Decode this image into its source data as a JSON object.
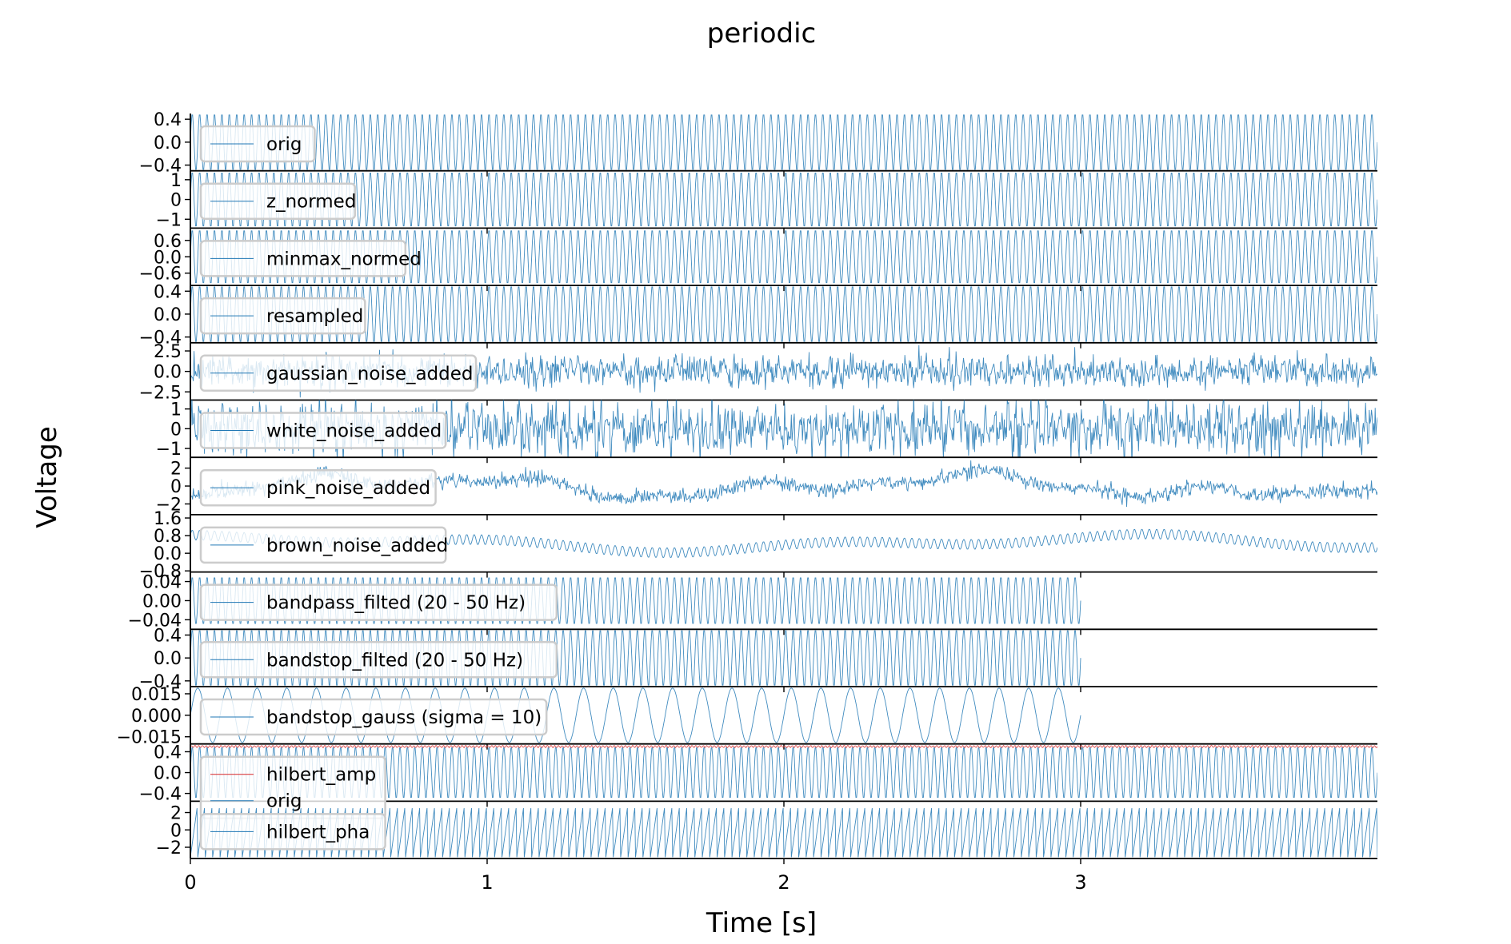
{
  "chart_data": {
    "type": "line",
    "title": "periodic",
    "xlabel": "Time [s]",
    "ylabel": "Voltage",
    "xlim": [
      0,
      4
    ],
    "x_ticks": [
      0,
      1,
      2,
      3
    ],
    "x_tick_labels": [
      "0",
      "1",
      "2",
      "3"
    ],
    "grid": false,
    "legend_placement": "left",
    "line_color": "#1f77b4",
    "amp_color": "#d62728",
    "panels": [
      {
        "name": "orig",
        "legend": [
          "orig"
        ],
        "y_ticks": [
          "0.4",
          "0.0",
          "−0.4"
        ],
        "ylim": [
          -0.5,
          0.5
        ],
        "kind": "sine",
        "freq": 40,
        "amp": 0.5,
        "t_end": 4.0
      },
      {
        "name": "z_normed",
        "legend": [
          "z_normed"
        ],
        "y_ticks": [
          "1",
          "0",
          "−1"
        ],
        "ylim": [
          -1.45,
          1.45
        ],
        "kind": "sine",
        "freq": 40,
        "amp": 1.41,
        "t_end": 4.0
      },
      {
        "name": "minmax_normed",
        "legend": [
          "minmax_normed"
        ],
        "y_ticks": [
          "0.6",
          "0.0",
          "−0.6"
        ],
        "ylim": [
          -1.05,
          1.05
        ],
        "kind": "sine",
        "freq": 40,
        "amp": 1.0,
        "t_end": 4.0
      },
      {
        "name": "resampled",
        "legend": [
          "resampled"
        ],
        "y_ticks": [
          "0.4",
          "0.0",
          "−0.4"
        ],
        "ylim": [
          -0.5,
          0.5
        ],
        "kind": "sine",
        "freq": 40,
        "amp": 0.5,
        "t_end": 4.0
      },
      {
        "name": "gaussian_noise_added",
        "legend": [
          "gaussian_noise_added"
        ],
        "y_ticks": [
          "2.5",
          "0.0",
          "−2.5"
        ],
        "ylim": [
          -3.5,
          3.5
        ],
        "kind": "noise",
        "freq": 40,
        "amp": 0.5,
        "noise": 0.9,
        "t_end": 4.0
      },
      {
        "name": "white_noise_added",
        "legend": [
          "white_noise_added"
        ],
        "y_ticks": [
          "1",
          "0",
          "−1"
        ],
        "ylim": [
          -1.45,
          1.45
        ],
        "kind": "noise",
        "freq": 40,
        "amp": 0.5,
        "noise": 0.6,
        "t_end": 4.0
      },
      {
        "name": "pink_noise_added",
        "legend": [
          "pink_noise_added"
        ],
        "y_ticks": [
          "2",
          "0",
          "−2"
        ],
        "ylim": [
          -3.2,
          3.2
        ],
        "kind": "pink",
        "freq": 40,
        "amp": 0.5,
        "noise": 0.4,
        "t_end": 4.0
      },
      {
        "name": "brown_noise_added",
        "legend": [
          "brown_noise_added"
        ],
        "y_ticks": [
          "1.6",
          "0.8",
          "0.0",
          "−0.8"
        ],
        "ylim": [
          -0.85,
          1.75
        ],
        "kind": "brown",
        "freq": 40,
        "amp": 0.5,
        "t_end": 4.0
      },
      {
        "name": "bandpass_filted",
        "legend": [
          "bandpass_filted (20 - 50 Hz)"
        ],
        "y_ticks": [
          "0.04",
          "0.00",
          "−0.04"
        ],
        "ylim": [
          -0.06,
          0.06
        ],
        "kind": "sine",
        "freq": 40,
        "amp": 0.05,
        "t_end": 3.0
      },
      {
        "name": "bandstop_filted",
        "legend": [
          "bandstop_filted (20 - 50 Hz)"
        ],
        "y_ticks": [
          "0.4",
          "0.0",
          "−0.4"
        ],
        "ylim": [
          -0.5,
          0.5
        ],
        "kind": "sine",
        "freq": 40,
        "amp": 0.5,
        "t_end": 3.0
      },
      {
        "name": "bandstop_gauss",
        "legend": [
          "bandstop_gauss (sigma = 10)"
        ],
        "y_ticks": [
          "0.015",
          "0.000",
          "−0.015"
        ],
        "ylim": [
          -0.02,
          0.02
        ],
        "kind": "sine",
        "freq": 10,
        "amp": 0.019,
        "t_end": 3.0
      },
      {
        "name": "hilbert_amp",
        "legend": [
          "hilbert_amp",
          "orig"
        ],
        "y_ticks": [
          "0.4",
          "0.0",
          "−0.4"
        ],
        "ylim": [
          -0.55,
          0.55
        ],
        "kind": "hilbert_amp",
        "freq": 40,
        "amp": 0.5,
        "t_end": 4.0
      },
      {
        "name": "hilbert_pha",
        "legend": [
          "hilbert_pha"
        ],
        "y_ticks": [
          "2",
          "0",
          "−2"
        ],
        "ylim": [
          -3.3,
          3.3
        ],
        "kind": "saw",
        "freq": 40,
        "amp": 3.14,
        "t_end": 4.0
      }
    ]
  }
}
